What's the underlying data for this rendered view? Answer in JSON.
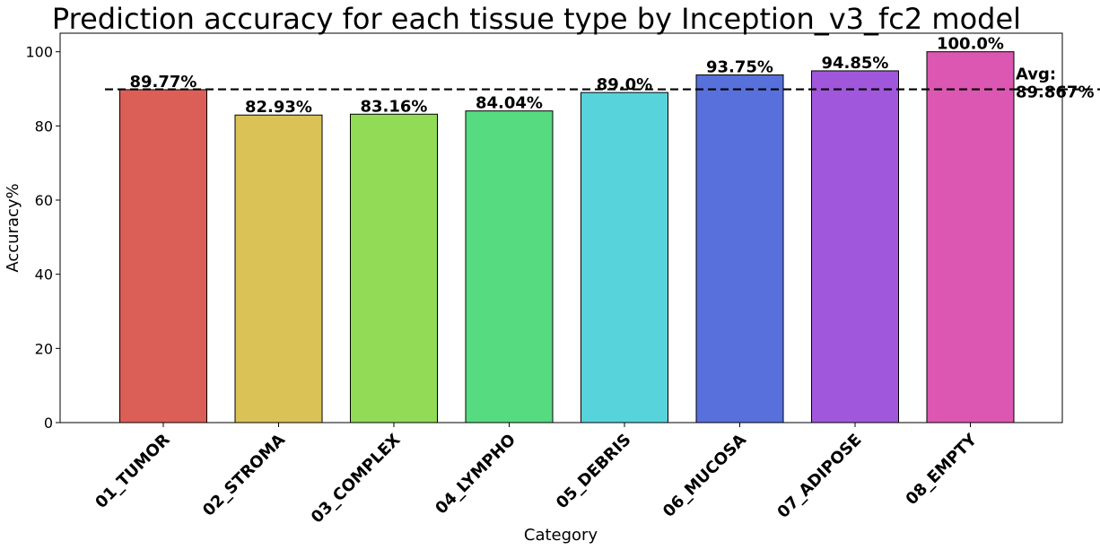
{
  "chart_data": {
    "type": "bar",
    "title": "Prediction accuracy for each tissue type by Inception_v3_fc2 model",
    "xlabel": "Category",
    "ylabel": "Accuracy%",
    "categories": [
      "01_TUMOR",
      "02_STROMA",
      "03_COMPLEX",
      "04_LYMPHO",
      "05_DEBRIS",
      "06_MUCOSA",
      "07_ADIPOSE",
      "08_EMPTY"
    ],
    "values": [
      89.77,
      82.93,
      83.16,
      84.04,
      89.0,
      93.75,
      94.85,
      100.0
    ],
    "value_labels": [
      "89.77%",
      "82.93%",
      "83.16%",
      "84.04%",
      "89.0%",
      "93.75%",
      "94.85%",
      "100.0%"
    ],
    "colors": [
      "#db5f57",
      "#dbc257",
      "#91db57",
      "#57db80",
      "#57d3db",
      "#5770db",
      "#a157db",
      "#db57b2"
    ],
    "ylim": [
      0,
      105
    ],
    "yticks": [
      0,
      20,
      40,
      60,
      80,
      100
    ],
    "ytick_labels": [
      "0",
      "20",
      "40",
      "60",
      "80",
      "100"
    ],
    "grid": false,
    "average": {
      "value": 89.867,
      "label_line1": "Avg:",
      "label_line2": "89.867%",
      "style": "dashed"
    }
  }
}
